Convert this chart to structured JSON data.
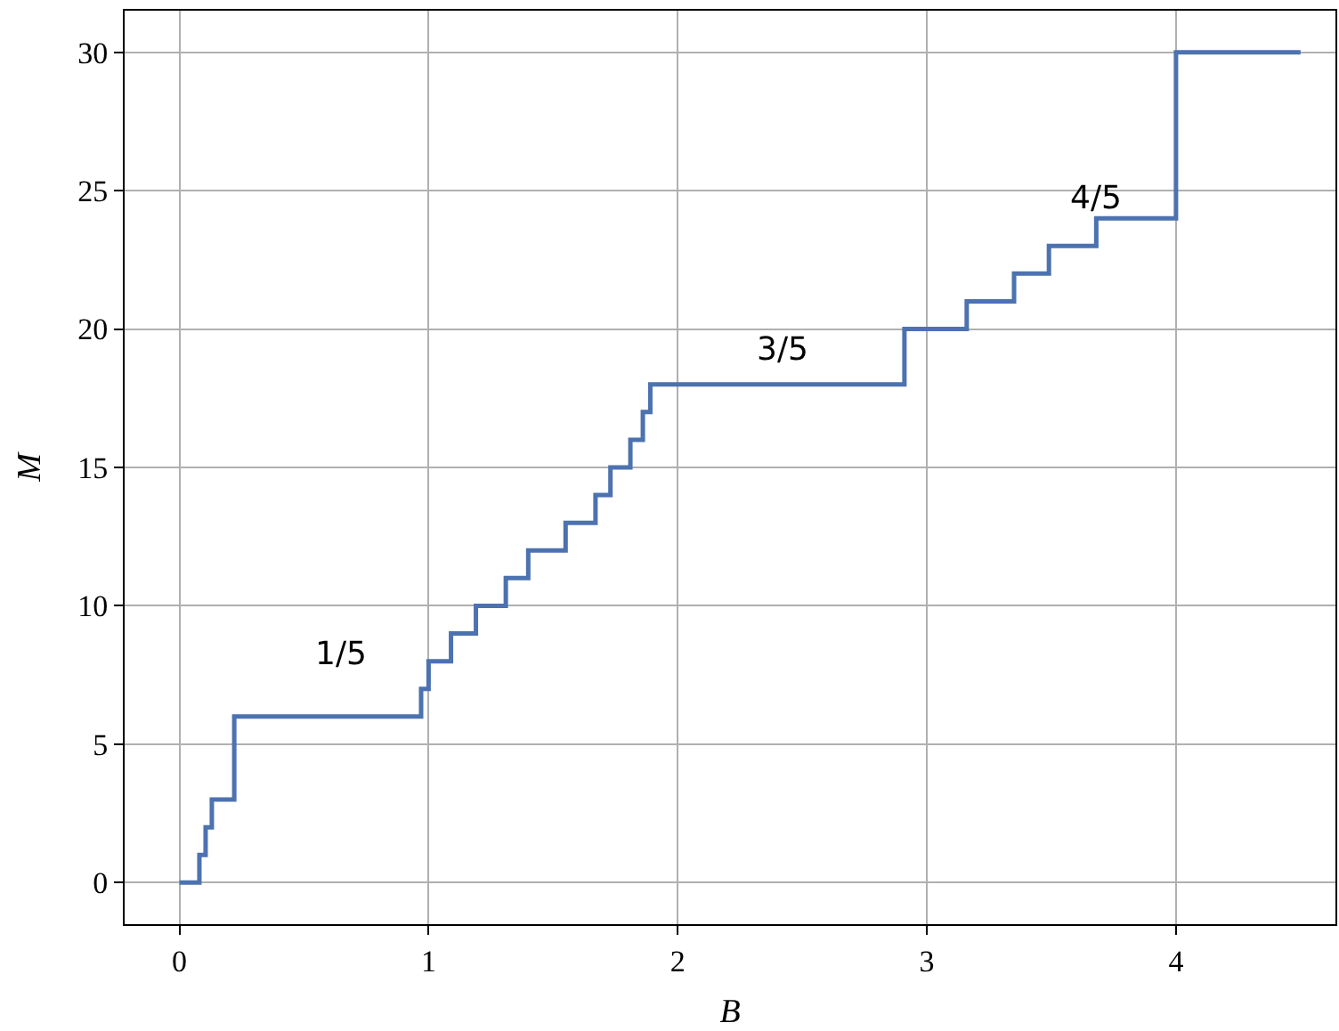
{
  "chart_data": {
    "type": "step",
    "xlabel": "B",
    "ylabel": "M",
    "x": [
      0,
      0.08,
      0.105,
      0.13,
      0.22,
      0.97,
      1.0,
      1.09,
      1.19,
      1.31,
      1.4,
      1.55,
      1.67,
      1.73,
      1.81,
      1.86,
      1.89,
      2.91,
      3.16,
      3.35,
      3.49,
      3.68,
      4.0,
      4.5
    ],
    "series": [
      {
        "color": "#4c72b0",
        "values": [
          0,
          1,
          2,
          3,
          6,
          7,
          8,
          9,
          10,
          11,
          12,
          13,
          14,
          15,
          16,
          17,
          18,
          20,
          21,
          22,
          23,
          24,
          30,
          30
        ]
      }
    ],
    "xlim": [
      -0.22,
      4.64
    ],
    "ylim": [
      -1.5,
      31.5
    ],
    "xticks": [
      0,
      1,
      2,
      3,
      4
    ],
    "yticks": [
      0,
      5,
      10,
      15,
      20,
      25,
      30
    ],
    "grid": true,
    "legend": false,
    "marker": "none",
    "line_style": "solid",
    "annotations": [
      "1/5",
      "3/5",
      "4/5"
    ]
  }
}
